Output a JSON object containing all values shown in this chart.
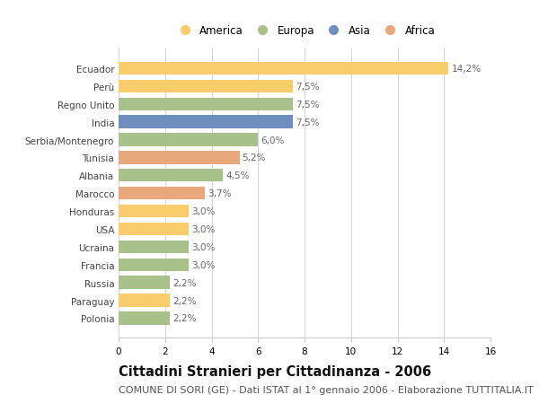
{
  "countries": [
    "Ecuador",
    "Perù",
    "Regno Unito",
    "India",
    "Serbia/Montenegro",
    "Tunisia",
    "Albania",
    "Marocco",
    "Honduras",
    "USA",
    "Ucraina",
    "Francia",
    "Russia",
    "Paraguay",
    "Polonia"
  ],
  "values": [
    14.2,
    7.5,
    7.5,
    7.5,
    6.0,
    5.2,
    4.5,
    3.7,
    3.0,
    3.0,
    3.0,
    3.0,
    2.2,
    2.2,
    2.2
  ],
  "labels": [
    "14,2%",
    "7,5%",
    "7,5%",
    "7,5%",
    "6,0%",
    "5,2%",
    "4,5%",
    "3,7%",
    "3,0%",
    "3,0%",
    "3,0%",
    "3,0%",
    "2,2%",
    "2,2%",
    "2,2%"
  ],
  "continents": [
    "America",
    "America",
    "Europa",
    "Asia",
    "Europa",
    "Africa",
    "Europa",
    "Africa",
    "America",
    "America",
    "Europa",
    "Europa",
    "Europa",
    "America",
    "Europa"
  ],
  "colors": {
    "America": "#F9CC6C",
    "Europa": "#A8C08A",
    "Asia": "#6E8FBE",
    "Africa": "#E8A87C"
  },
  "legend_order": [
    "America",
    "Europa",
    "Asia",
    "Africa"
  ],
  "xlim": [
    0,
    16
  ],
  "xticks": [
    0,
    2,
    4,
    6,
    8,
    10,
    12,
    14,
    16
  ],
  "title": "Cittadini Stranieri per Cittadinanza - 2006",
  "subtitle": "COMUNE DI SORI (GE) - Dati ISTAT al 1° gennaio 2006 - Elaborazione TUTTITALIA.IT",
  "background_color": "#FFFFFF",
  "grid_color": "#CCCCCC",
  "bar_height": 0.72,
  "title_fontsize": 10.5,
  "subtitle_fontsize": 8,
  "label_fontsize": 7.5,
  "tick_fontsize": 7.5,
  "legend_fontsize": 8.5
}
